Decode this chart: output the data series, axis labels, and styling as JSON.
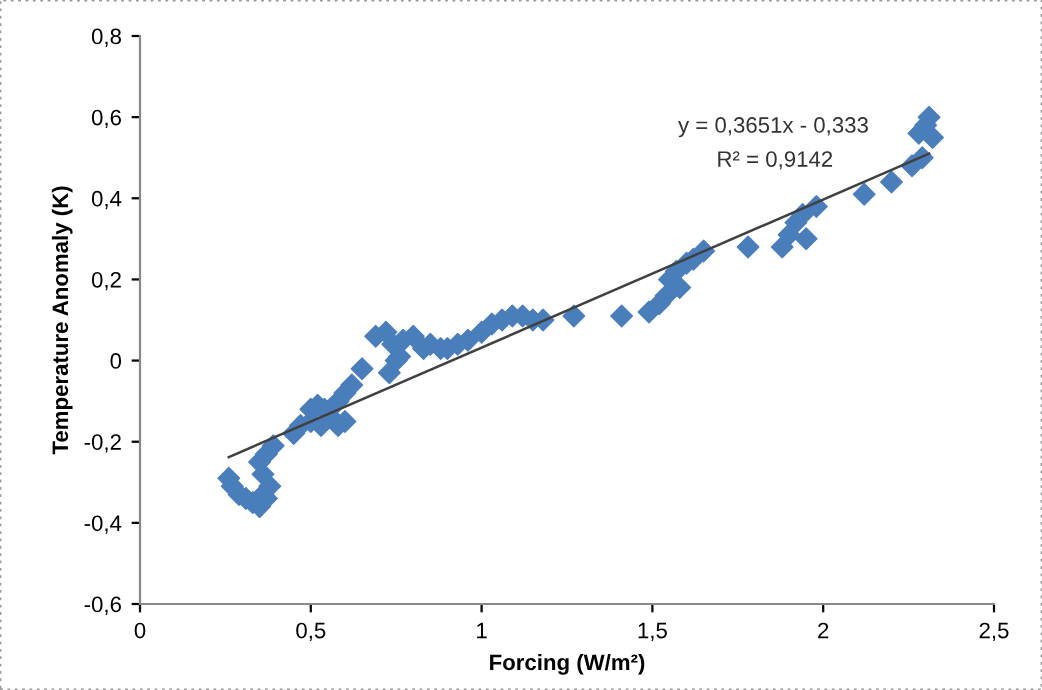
{
  "chart_data": {
    "type": "scatter",
    "xlabel": "Forcing (W/m²)",
    "ylabel": "Temperature Anomaly (K)",
    "xlim": [
      0,
      2.5
    ],
    "ylim": [
      -0.6,
      0.8
    ],
    "xticks": [
      0,
      {
        "value": 0.5,
        "label": "0,5"
      },
      1,
      {
        "value": 1.5,
        "label": "1,5"
      },
      2,
      {
        "value": 2.5,
        "label": "2,5"
      }
    ],
    "yticks": [
      {
        "value": -0.6,
        "label": "-0,6"
      },
      {
        "value": -0.4,
        "label": "-0,4"
      },
      {
        "value": -0.2,
        "label": "-0,2"
      },
      0,
      {
        "value": 0.2,
        "label": "0,2"
      },
      {
        "value": 0.4,
        "label": "0,4"
      },
      {
        "value": 0.6,
        "label": "0,6"
      },
      {
        "value": 0.8,
        "label": "0,8"
      }
    ],
    "grid": false,
    "marker": "diamond",
    "series": [
      {
        "color": "#4a7ebb",
        "x": [
          0.26,
          0.27,
          0.29,
          0.31,
          0.33,
          0.35,
          0.36,
          0.37,
          0.38,
          0.36,
          0.35,
          0.37,
          0.39,
          0.45,
          0.47,
          0.5,
          0.52,
          0.54,
          0.5,
          0.53,
          0.56,
          0.58,
          0.6,
          0.58,
          0.6,
          0.62,
          0.65,
          0.69,
          0.72,
          0.74,
          0.76,
          0.73,
          0.75,
          0.77,
          0.8,
          0.83,
          0.85,
          0.88,
          0.9,
          0.93,
          0.96,
          1.0,
          1.03,
          1.06,
          1.09,
          1.12,
          1.15,
          1.18,
          1.27,
          1.41,
          1.49,
          1.52,
          1.54,
          1.55,
          1.57,
          1.58,
          1.6,
          1.62,
          1.65,
          1.78,
          1.88,
          1.9,
          1.92,
          1.94,
          1.95,
          1.98,
          2.12,
          2.2,
          2.26,
          2.29,
          2.28,
          2.3,
          2.31,
          2.32
        ],
        "values": [
          -0.29,
          -0.31,
          -0.33,
          -0.34,
          -0.35,
          -0.36,
          -0.33,
          -0.34,
          -0.31,
          -0.28,
          -0.25,
          -0.23,
          -0.21,
          -0.18,
          -0.16,
          -0.12,
          -0.11,
          -0.12,
          -0.15,
          -0.16,
          -0.14,
          -0.16,
          -0.15,
          -0.1,
          -0.08,
          -0.06,
          -0.02,
          0.06,
          0.07,
          0.04,
          0.01,
          -0.03,
          0.0,
          0.05,
          0.06,
          0.03,
          0.04,
          0.03,
          0.03,
          0.04,
          0.05,
          0.07,
          0.09,
          0.1,
          0.11,
          0.11,
          0.1,
          0.1,
          0.11,
          0.11,
          0.12,
          0.14,
          0.16,
          0.2,
          0.22,
          0.18,
          0.24,
          0.25,
          0.27,
          0.28,
          0.28,
          0.31,
          0.34,
          0.36,
          0.3,
          0.38,
          0.41,
          0.44,
          0.48,
          0.5,
          0.56,
          0.58,
          0.6,
          0.55
        ]
      },
      {
        "type": "line",
        "color": "#404040",
        "marker": "none",
        "x": [
          0.26,
          2.31
        ],
        "values": [
          -0.238,
          0.51
        ]
      }
    ],
    "annotations": [
      "y = 0,3651x - 0,333",
      "R² = 0,9142"
    ]
  }
}
